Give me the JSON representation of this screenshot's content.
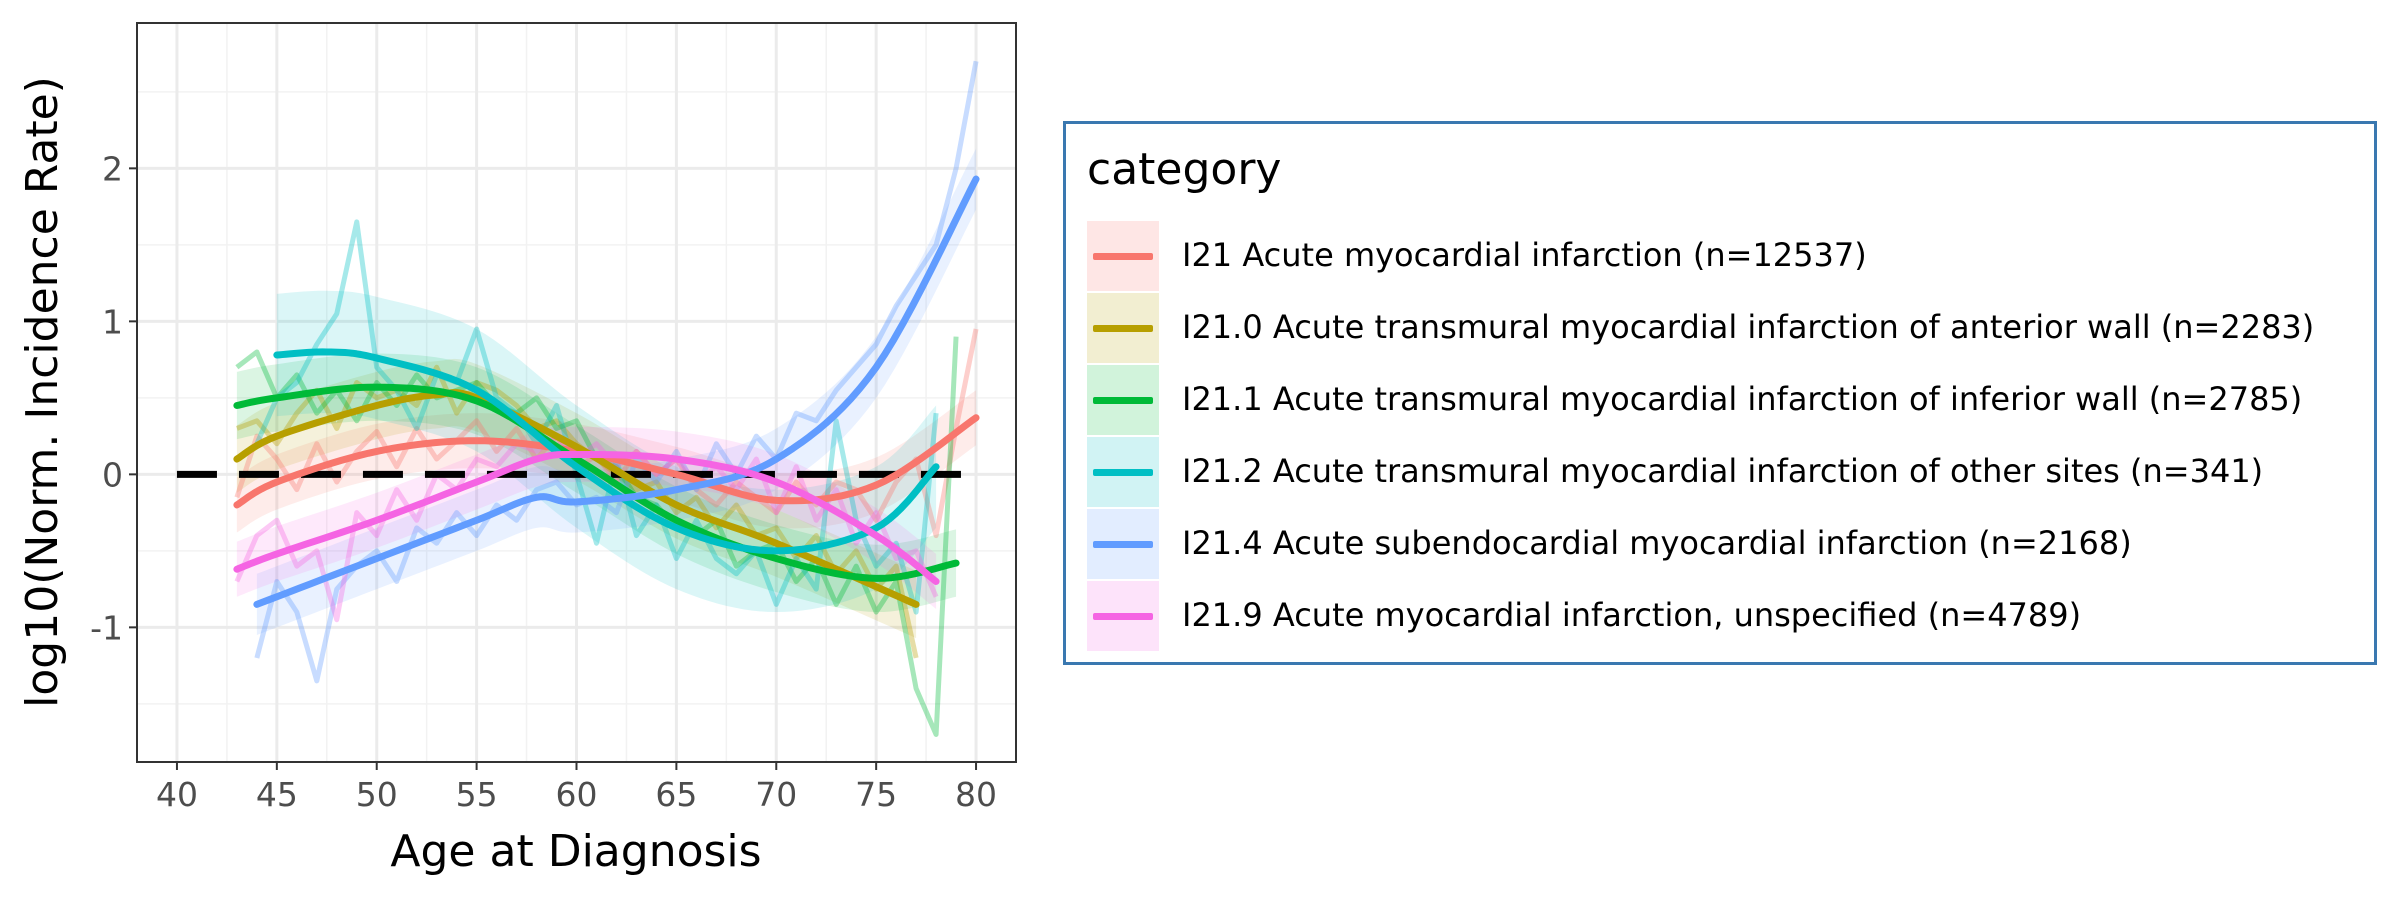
{
  "chart_data": {
    "type": "line",
    "title": "",
    "xlabel": "Age at Diagnosis",
    "ylabel": "log10(Norm. Incidence Rate)",
    "xlim": [
      38,
      82
    ],
    "ylim": [
      -1.88,
      2.95
    ],
    "x_ticks": [
      "40",
      "45",
      "50",
      "55",
      "60",
      "65",
      "70",
      "75",
      "80"
    ],
    "y_ticks": [
      "-1",
      "0",
      "1",
      "2"
    ],
    "x_tick_values": [
      40,
      45,
      50,
      55,
      60,
      65,
      70,
      75,
      80
    ],
    "y_tick_values": [
      -1,
      0,
      1,
      2
    ],
    "grid": true,
    "reference_line": {
      "y": 0,
      "style": "dashed",
      "color": "#000000"
    },
    "legend": {
      "title": "category",
      "position": "right"
    },
    "series": [
      {
        "name": "I21 Acute myocardial infarction (n=12537)",
        "color": "#F8766D",
        "raw_x": [
          43,
          44,
          45,
          46,
          47,
          48,
          49,
          50,
          51,
          52,
          53,
          54,
          55,
          56,
          57,
          58,
          59,
          60,
          61,
          62,
          63,
          64,
          65,
          66,
          67,
          68,
          69,
          70,
          71,
          72,
          73,
          74,
          75,
          76,
          77,
          78,
          79,
          80
        ],
        "raw_y": [
          -0.15,
          0.25,
          0.1,
          -0.1,
          0.2,
          -0.05,
          0.15,
          0.28,
          0.05,
          0.3,
          0.1,
          0.22,
          0.35,
          0.15,
          0.3,
          0.1,
          0.25,
          0.05,
          0.12,
          -0.05,
          0.15,
          0.0,
          0.1,
          -0.1,
          -0.2,
          -0.05,
          -0.15,
          -0.25,
          -0.05,
          -0.2,
          -0.05,
          -0.1,
          -0.3,
          -0.05,
          0.1,
          -0.4,
          0.3,
          0.95
        ],
        "smooth_x": [
          43,
          45,
          50,
          55,
          60,
          65,
          70,
          75,
          80
        ],
        "smooth_y": [
          -0.2,
          -0.05,
          0.15,
          0.22,
          0.15,
          0.0,
          -0.17,
          -0.07,
          0.37
        ],
        "band": 0.18
      },
      {
        "name": "I21.0 Acute transmural myocardial infarction of anterior wall (n=2283)",
        "color": "#B79F00",
        "raw_x": [
          43,
          44,
          45,
          46,
          47,
          48,
          49,
          50,
          51,
          52,
          53,
          54,
          55,
          56,
          57,
          58,
          59,
          60,
          61,
          62,
          63,
          64,
          65,
          66,
          67,
          68,
          69,
          70,
          71,
          72,
          73,
          74,
          75,
          76,
          77
        ],
        "raw_y": [
          0.3,
          0.35,
          0.2,
          0.4,
          0.55,
          0.3,
          0.6,
          0.5,
          0.55,
          0.45,
          0.7,
          0.4,
          0.6,
          0.55,
          0.45,
          0.3,
          0.35,
          0.2,
          0.1,
          0.0,
          -0.1,
          -0.05,
          -0.25,
          -0.15,
          -0.35,
          -0.2,
          -0.4,
          -0.35,
          -0.55,
          -0.4,
          -0.65,
          -0.5,
          -0.75,
          -0.6,
          -1.2
        ],
        "smooth_x": [
          43,
          45,
          50,
          53,
          55,
          60,
          65,
          70,
          77
        ],
        "smooth_y": [
          0.1,
          0.25,
          0.45,
          0.52,
          0.5,
          0.18,
          -0.2,
          -0.45,
          -0.85
        ],
        "band": 0.22
      },
      {
        "name": "I21.1 Acute transmural myocardial infarction of inferior wall (n=2785)",
        "color": "#00BA38",
        "raw_x": [
          43,
          44,
          45,
          46,
          47,
          48,
          49,
          50,
          51,
          52,
          53,
          54,
          55,
          56,
          57,
          58,
          59,
          60,
          61,
          62,
          63,
          64,
          65,
          66,
          67,
          68,
          69,
          70,
          71,
          72,
          73,
          74,
          75,
          76,
          77,
          78,
          79
        ],
        "raw_y": [
          0.7,
          0.8,
          0.5,
          0.65,
          0.4,
          0.55,
          0.35,
          0.6,
          0.45,
          0.65,
          0.5,
          0.55,
          0.6,
          0.45,
          0.4,
          0.5,
          0.3,
          0.35,
          0.1,
          0.05,
          -0.15,
          -0.2,
          -0.35,
          -0.4,
          -0.3,
          -0.6,
          -0.5,
          -0.45,
          -0.7,
          -0.55,
          -0.85,
          -0.6,
          -0.9,
          -0.7,
          -1.4,
          -1.7,
          0.9
        ],
        "smooth_x": [
          43,
          45,
          50,
          55,
          60,
          65,
          70,
          75,
          79
        ],
        "smooth_y": [
          0.45,
          0.5,
          0.57,
          0.48,
          0.1,
          -0.3,
          -0.55,
          -0.68,
          -0.58
        ],
        "band": 0.22
      },
      {
        "name": "I21.2 Acute transmural myocardial infarction of other sites (n=341)",
        "color": "#00BFC4",
        "raw_x": [
          44,
          45,
          46,
          47,
          48,
          49,
          50,
          51,
          52,
          53,
          54,
          55,
          56,
          57,
          58,
          59,
          60,
          61,
          62,
          63,
          64,
          65,
          66,
          67,
          68,
          69,
          70,
          71,
          72,
          73,
          74,
          75,
          76,
          77,
          78
        ],
        "raw_y": [
          0.2,
          0.5,
          0.6,
          0.85,
          1.05,
          1.65,
          0.7,
          0.55,
          0.3,
          0.65,
          0.6,
          0.95,
          0.5,
          0.4,
          0.2,
          0.45,
          0.0,
          -0.45,
          0.1,
          -0.4,
          -0.2,
          -0.55,
          -0.3,
          -0.55,
          -0.65,
          -0.5,
          -0.85,
          -0.55,
          -0.75,
          0.35,
          -0.3,
          -0.6,
          -0.45,
          -0.9,
          0.4
        ],
        "smooth_x": [
          45,
          47.5,
          50,
          55,
          60,
          65,
          70,
          75,
          78
        ],
        "smooth_y": [
          0.78,
          0.8,
          0.76,
          0.55,
          0.05,
          -0.35,
          -0.5,
          -0.35,
          0.05
        ],
        "band": 0.4
      },
      {
        "name": "I21.4 Acute subendocardial myocardial infarction (n=2168)",
        "color": "#619CFF",
        "raw_x": [
          44,
          45,
          46,
          47,
          48,
          49,
          50,
          51,
          52,
          53,
          54,
          55,
          56,
          57,
          58,
          59,
          60,
          61,
          62,
          63,
          64,
          65,
          66,
          67,
          68,
          69,
          70,
          71,
          72,
          73,
          74,
          75,
          76,
          77,
          78,
          79,
          80
        ],
        "raw_y": [
          -1.2,
          -0.7,
          -0.9,
          -1.35,
          -0.75,
          -0.6,
          -0.5,
          -0.7,
          -0.35,
          -0.45,
          -0.25,
          -0.4,
          -0.2,
          -0.3,
          -0.1,
          -0.05,
          -0.2,
          -0.15,
          -0.25,
          0.1,
          -0.05,
          0.15,
          -0.1,
          0.2,
          0.0,
          0.25,
          0.1,
          0.4,
          0.35,
          0.55,
          0.7,
          0.85,
          1.1,
          1.3,
          1.5,
          2.0,
          2.7
        ],
        "smooth_x": [
          44,
          50,
          55,
          58,
          60,
          65,
          70,
          75,
          80
        ],
        "smooth_y": [
          -0.85,
          -0.55,
          -0.3,
          -0.15,
          -0.18,
          -0.1,
          0.1,
          0.7,
          1.93
        ],
        "band": 0.2
      },
      {
        "name": "I21.9 Acute myocardial infarction, unspecified (n=4789)",
        "color": "#F564E3",
        "raw_x": [
          43,
          44,
          45,
          46,
          47,
          48,
          49,
          50,
          51,
          52,
          53,
          54,
          55,
          56,
          57,
          58,
          59,
          60,
          61,
          62,
          63,
          64,
          65,
          66,
          67,
          68,
          69,
          70,
          71,
          72,
          73,
          74,
          75,
          76,
          77,
          78
        ],
        "raw_y": [
          -0.7,
          -0.4,
          -0.3,
          -0.6,
          -0.5,
          -0.95,
          -0.25,
          -0.4,
          -0.1,
          -0.3,
          0.0,
          -0.1,
          0.1,
          0.05,
          0.2,
          0.15,
          0.25,
          0.1,
          0.2,
          0.05,
          0.15,
          0.0,
          0.1,
          -0.05,
          0.05,
          -0.1,
          0.1,
          -0.25,
          0.05,
          -0.3,
          -0.1,
          -0.45,
          -0.25,
          -0.55,
          -0.5,
          -0.8
        ],
        "smooth_x": [
          43,
          45,
          50,
          55,
          58,
          60,
          65,
          70,
          75,
          78
        ],
        "smooth_y": [
          -0.62,
          -0.52,
          -0.3,
          -0.05,
          0.1,
          0.13,
          0.1,
          -0.05,
          -0.4,
          -0.7
        ],
        "band": 0.18
      }
    ]
  }
}
